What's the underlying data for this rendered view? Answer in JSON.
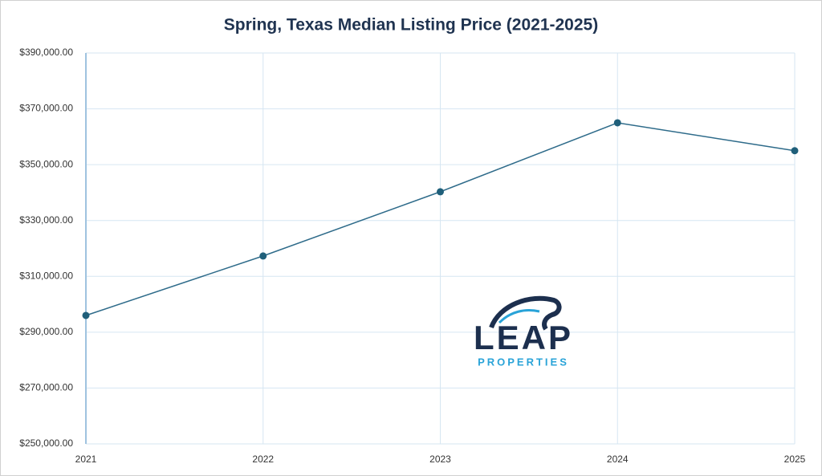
{
  "chart_data": {
    "type": "line",
    "title": "Spring, Texas Median Listing Price (2021-2025)",
    "x": [
      2021,
      2022,
      2023,
      2024,
      2025
    ],
    "series": [
      {
        "name": "Median Listing Price",
        "color": "#2e6b8a",
        "values": [
          296000,
          317300,
          340300,
          365000,
          355000
        ]
      }
    ],
    "xlim": [
      2021,
      2025
    ],
    "xticks": [
      2021,
      2022,
      2023,
      2024,
      2025
    ],
    "ylim": [
      250000,
      390000
    ],
    "yticks": [
      {
        "value": 250000,
        "label": "$250,000.00"
      },
      {
        "value": 270000,
        "label": "$270,000.00"
      },
      {
        "value": 290000,
        "label": "$290,000.00"
      },
      {
        "value": 310000,
        "label": "$310,000.00"
      },
      {
        "value": 330000,
        "label": "$330,000.00"
      },
      {
        "value": 350000,
        "label": "$350,000.00"
      },
      {
        "value": 370000,
        "label": "$370,000.00"
      },
      {
        "value": 390000,
        "label": "$390,000.00"
      }
    ],
    "grid": true,
    "annotations": [
      "LEAP",
      "PROPERTIES"
    ]
  }
}
